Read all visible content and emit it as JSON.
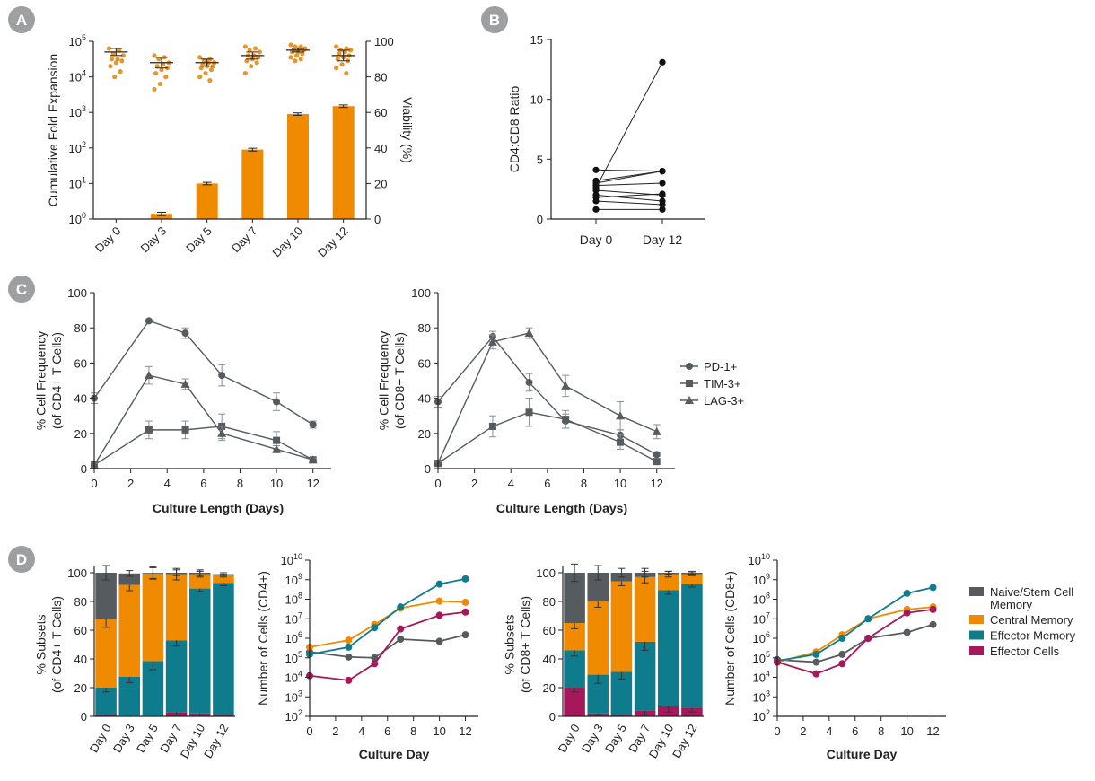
{
  "panel_letters": [
    "A",
    "B",
    "C",
    "D"
  ],
  "colors": {
    "orange": "#F08A00",
    "dot_orange": "#E8962A",
    "gray": "#555B5E",
    "teal": "#0E7C8C",
    "magenta": "#A5185A",
    "axis": "#222222",
    "badge": "#9D9FA0"
  },
  "chart_data": [
    {
      "id": "A",
      "type": "bar",
      "title": "",
      "xlabel": "",
      "ylabel": "Cumulative Fold Expansion",
      "y2label": "Viability (%)",
      "categories": [
        "Day 0",
        "Day 3",
        "Day 5",
        "Day 7",
        "Day 10",
        "Day 12"
      ],
      "y_scale": "log",
      "ylim": [
        1,
        100000
      ],
      "y_ticks": [
        {
          "base": "10",
          "exp": "0"
        },
        {
          "base": "10",
          "exp": "1"
        },
        {
          "base": "10",
          "exp": "2"
        },
        {
          "base": "10",
          "exp": "3"
        },
        {
          "base": "10",
          "exp": "4"
        },
        {
          "base": "10",
          "exp": "5"
        }
      ],
      "y2lim": [
        0,
        100
      ],
      "y2_ticks": [
        "0",
        "20",
        "40",
        "60",
        "80",
        "100"
      ],
      "fold_expansion": [
        1,
        1.4,
        10,
        90,
        900,
        1500
      ],
      "fold_expansion_err": [
        0,
        0.15,
        0.8,
        8,
        70,
        120
      ],
      "viability_points": [
        [
          96,
          95,
          93,
          92,
          90,
          90,
          89,
          88,
          86,
          83,
          80
        ],
        [
          92,
          91,
          90,
          88,
          87,
          86,
          85,
          84,
          82,
          80,
          76,
          73
        ],
        [
          91,
          90,
          89,
          88,
          88,
          87,
          86,
          86,
          85,
          84,
          82,
          80,
          78
        ],
        [
          97,
          96,
          95,
          94,
          92,
          92,
          91,
          90,
          89,
          88,
          86,
          82
        ],
        [
          98,
          97,
          97,
          96,
          96,
          95,
          95,
          94,
          94,
          93,
          92,
          91,
          90,
          89
        ],
        [
          97,
          96,
          95,
          95,
          94,
          93,
          92,
          91,
          90,
          89,
          87,
          85,
          82
        ]
      ],
      "viability_mean": [
        94,
        88,
        88,
        92,
        95,
        92
      ],
      "viability_err": [
        2,
        3,
        2,
        2,
        1,
        3
      ]
    },
    {
      "id": "B",
      "type": "line",
      "title": "",
      "xlabel": "",
      "ylabel": "CD4:CD8 Ratio",
      "categories": [
        "Day 0",
        "Day 12"
      ],
      "ylim": [
        0,
        15
      ],
      "y_ticks": [
        "0",
        "5",
        "10",
        "15"
      ],
      "pairs": [
        [
          0.8,
          0.8
        ],
        [
          1.5,
          1.2
        ],
        [
          1.8,
          2.1
        ],
        [
          2.0,
          1.5
        ],
        [
          2.4,
          2.0
        ],
        [
          2.8,
          3.0
        ],
        [
          3.0,
          4.0
        ],
        [
          3.2,
          4.0
        ],
        [
          4.1,
          4.0
        ],
        [
          2.6,
          13.1
        ]
      ]
    },
    {
      "id": "C-CD4",
      "type": "line",
      "title": "",
      "xlabel": "Culture Length (Days)",
      "ylabel": "% Cell Frequency",
      "ylabel2": "(of CD4+ T Cells)",
      "x": [
        0,
        3,
        5,
        7,
        10,
        12
      ],
      "xlim": [
        0,
        13
      ],
      "x_ticks": [
        "0",
        "2",
        "4",
        "6",
        "8",
        "10",
        "12"
      ],
      "ylim": [
        0,
        100
      ],
      "y_ticks": [
        "0",
        "20",
        "40",
        "60",
        "80",
        "100"
      ],
      "series": [
        {
          "name": "PD-1+",
          "marker": "circle",
          "values": [
            40,
            84,
            77,
            53,
            38,
            25
          ],
          "err": [
            3,
            0,
            3,
            6,
            5,
            2
          ]
        },
        {
          "name": "TIM-3+",
          "marker": "square",
          "values": [
            2,
            22,
            22,
            24,
            16,
            5
          ],
          "err": [
            2,
            5,
            5,
            7,
            5,
            1
          ]
        },
        {
          "name": "LAG-3+",
          "marker": "triangle",
          "values": [
            2,
            53,
            48,
            20,
            11,
            5
          ],
          "err": [
            1,
            5,
            3,
            4,
            2,
            1
          ]
        }
      ]
    },
    {
      "id": "C-CD8",
      "type": "line",
      "title": "",
      "xlabel": "Culture Length (Days)",
      "ylabel": "% Cell Frequency",
      "ylabel2": "(of CD8+ T Cells)",
      "x": [
        0,
        3,
        5,
        7,
        10,
        12
      ],
      "xlim": [
        0,
        13
      ],
      "x_ticks": [
        "0",
        "2",
        "4",
        "6",
        "8",
        "10",
        "12"
      ],
      "ylim": [
        0,
        100
      ],
      "y_ticks": [
        "0",
        "20",
        "40",
        "60",
        "80",
        "100"
      ],
      "series": [
        {
          "name": "PD-1+",
          "marker": "circle",
          "values": [
            38,
            75,
            49,
            27,
            19,
            8
          ],
          "err": [
            3,
            3,
            5,
            4,
            3,
            1
          ]
        },
        {
          "name": "TIM-3+",
          "marker": "square",
          "values": [
            3,
            24,
            32,
            28,
            15,
            4
          ],
          "err": [
            1,
            6,
            8,
            5,
            4,
            1
          ]
        },
        {
          "name": "LAG-3+",
          "marker": "triangle",
          "values": [
            3,
            72,
            77,
            47,
            30,
            21
          ],
          "err": [
            1,
            4,
            3,
            6,
            8,
            4
          ]
        }
      ]
    },
    {
      "id": "D-CD4-bar",
      "type": "bar",
      "title": "",
      "xlabel": "",
      "ylabel": "% Subsets",
      "ylabel2": "(of CD4+ T Cells)",
      "categories": [
        "Day 0",
        "Day 3",
        "Day 5",
        "Day 7",
        "Day 10",
        "Day 12"
      ],
      "ylim": [
        0,
        100
      ],
      "y_ticks": [
        "0",
        "20",
        "40",
        "60",
        "80",
        "100"
      ],
      "series": [
        {
          "name": "Effector Cells",
          "color": "magenta",
          "values": [
            1,
            0.5,
            0.5,
            3,
            2,
            1
          ],
          "err": [
            1,
            0.5,
            0.5,
            2,
            2,
            2
          ]
        },
        {
          "name": "Effector Memory",
          "color": "teal",
          "values": [
            19,
            27,
            38,
            50,
            87,
            92
          ],
          "err": [
            3,
            4,
            6,
            4,
            2,
            2
          ]
        },
        {
          "name": "Central Memory",
          "color": "orange",
          "values": [
            48,
            64,
            61,
            46,
            10,
            5
          ],
          "err": [
            6,
            4,
            4,
            4,
            2,
            1
          ]
        },
        {
          "name": "Naive/Stem Cell Memory",
          "color": "gray",
          "values": [
            32,
            8,
            0.5,
            1,
            1,
            1
          ],
          "err": [
            5,
            2,
            4,
            2,
            2,
            1
          ]
        }
      ]
    },
    {
      "id": "D-CD4-line",
      "type": "line",
      "title": "",
      "xlabel": "Culture Day",
      "ylabel": "Number of Cells (CD4+)",
      "y_scale": "log",
      "x": [
        0,
        3,
        5,
        7,
        10,
        12
      ],
      "xlim": [
        0,
        13
      ],
      "x_ticks": [
        "0",
        "2",
        "4",
        "6",
        "8",
        "10",
        "12"
      ],
      "ylim": [
        100,
        10000000000
      ],
      "y_ticks": [
        {
          "base": "10",
          "exp": "2"
        },
        {
          "base": "10",
          "exp": "3"
        },
        {
          "base": "10",
          "exp": "4"
        },
        {
          "base": "10",
          "exp": "5"
        },
        {
          "base": "10",
          "exp": "6"
        },
        {
          "base": "10",
          "exp": "7"
        },
        {
          "base": "10",
          "exp": "8"
        },
        {
          "base": "10",
          "exp": "9"
        },
        {
          "base": "10",
          "exp": "10"
        }
      ],
      "series": [
        {
          "name": "Naive/Stem Cell Memory",
          "color": "gray",
          "values": [
            200000,
            110000,
            100000,
            900000,
            700000,
            1500000
          ]
        },
        {
          "name": "Central Memory",
          "color": "orange",
          "values": [
            350000,
            800000,
            5000000,
            35000000,
            80000000,
            70000000
          ]
        },
        {
          "name": "Effector Memory",
          "color": "teal",
          "values": [
            150000,
            350000,
            3500000,
            40000000,
            600000000,
            1100000000
          ]
        },
        {
          "name": "Effector Cells",
          "color": "magenta",
          "values": [
            12000,
            7000,
            50000,
            3000000,
            15000000,
            22000000
          ]
        }
      ]
    },
    {
      "id": "D-CD8-bar",
      "type": "bar",
      "title": "",
      "xlabel": "",
      "ylabel": "% Subsets",
      "ylabel2": "(of CD8+ T Cells)",
      "categories": [
        "Day 0",
        "Day 3",
        "Day 5",
        "Day 7",
        "Day 10",
        "Day 12"
      ],
      "ylim": [
        0,
        100
      ],
      "y_ticks": [
        "0",
        "20",
        "40",
        "60",
        "80",
        "100"
      ],
      "series": [
        {
          "name": "Effector Cells",
          "color": "magenta",
          "values": [
            20,
            2,
            1,
            4,
            7,
            6
          ],
          "err": [
            3,
            1,
            1,
            3,
            4,
            3
          ]
        },
        {
          "name": "Effector Memory",
          "color": "teal",
          "values": [
            26,
            27,
            30,
            48,
            81,
            86
          ],
          "err": [
            4,
            6,
            5,
            6,
            3,
            2
          ]
        },
        {
          "name": "Central Memory",
          "color": "orange",
          "values": [
            19,
            51,
            63,
            45,
            11,
            7
          ],
          "err": [
            4,
            4,
            3,
            4,
            2,
            1
          ]
        },
        {
          "name": "Naive/Stem Cell Memory",
          "color": "gray",
          "values": [
            35,
            20,
            6,
            3,
            1,
            1
          ],
          "err": [
            6,
            5,
            3,
            3,
            1,
            1
          ]
        }
      ]
    },
    {
      "id": "D-CD8-line",
      "type": "line",
      "title": "",
      "xlabel": "Culture Day",
      "ylabel": "Number of Cells (CD8+)",
      "y_scale": "log",
      "x": [
        0,
        3,
        5,
        7,
        10,
        12
      ],
      "xlim": [
        0,
        13
      ],
      "x_ticks": [
        "0",
        "2",
        "4",
        "6",
        "8",
        "10",
        "12"
      ],
      "ylim": [
        100,
        10000000000
      ],
      "y_ticks": [
        {
          "base": "10",
          "exp": "2"
        },
        {
          "base": "10",
          "exp": "3"
        },
        {
          "base": "10",
          "exp": "4"
        },
        {
          "base": "10",
          "exp": "5"
        },
        {
          "base": "10",
          "exp": "6"
        },
        {
          "base": "10",
          "exp": "7"
        },
        {
          "base": "10",
          "exp": "8"
        },
        {
          "base": "10",
          "exp": "9"
        },
        {
          "base": "10",
          "exp": "10"
        }
      ],
      "series": [
        {
          "name": "Naive/Stem Cell Memory",
          "color": "gray",
          "values": [
            80000,
            60000,
            150000,
            1000000,
            2000000,
            5000000
          ]
        },
        {
          "name": "Central Memory",
          "color": "orange",
          "values": [
            60000,
            200000,
            1500000,
            10000000,
            30000000,
            40000000
          ]
        },
        {
          "name": "Effector Memory",
          "color": "teal",
          "values": [
            70000,
            150000,
            1000000,
            10000000,
            200000000,
            400000000
          ]
        },
        {
          "name": "Effector Cells",
          "color": "magenta",
          "values": [
            60000,
            15000,
            50000,
            1000000,
            20000000,
            30000000
          ]
        }
      ]
    }
  ],
  "legend_C": [
    {
      "name": "PD-1+",
      "marker": "circle"
    },
    {
      "name": "TIM-3+",
      "marker": "square"
    },
    {
      "name": "LAG-3+",
      "marker": "triangle"
    }
  ],
  "legend_D": [
    {
      "lines": [
        "Naive/Stem Cell",
        "Memory"
      ],
      "color": "gray"
    },
    {
      "lines": [
        "Central Memory"
      ],
      "color": "orange"
    },
    {
      "lines": [
        "Effector Memory"
      ],
      "color": "teal"
    },
    {
      "lines": [
        "Effector Cells"
      ],
      "color": "magenta"
    }
  ]
}
